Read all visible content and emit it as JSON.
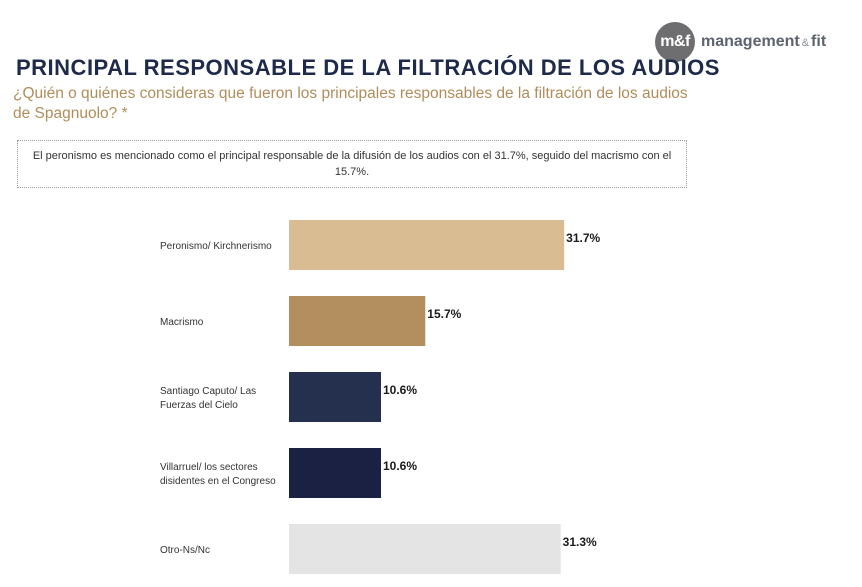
{
  "logo": {
    "badge": "m&f",
    "name": "management",
    "amp": "&",
    "suffix": "fit"
  },
  "title": "PRINCIPAL RESPONSABLE DE LA FILTRACIÓN DE LOS AUDIOS",
  "question": "¿Quién o quiénes consideras que fueron los principales responsables de la filtración de los audios de Spagnuolo? *",
  "summary": "El peronismo es mencionado como el principal responsable de la difusión de los audios con el 31.7%, seguido del macrismo con el 15.7%.",
  "chart_data": {
    "type": "bar",
    "orientation": "horizontal",
    "unit": "%",
    "categories": [
      [
        "Peronismo/ Kirchnerismo"
      ],
      [
        "Macrismo"
      ],
      [
        "Santiago Caputo/ Las",
        "Fuerzas del Cielo"
      ],
      [
        "Villarruel/ los sectores",
        "disidentes en el Congreso"
      ],
      [
        "Otro-Ns/Nc"
      ]
    ],
    "values": [
      31.7,
      15.7,
      10.6,
      10.6,
      31.3
    ],
    "value_labels": [
      "31.7%",
      "15.7%",
      "10.6%",
      "10.6%",
      "31.3%"
    ],
    "colors": [
      "#d9bc92",
      "#b38e5f",
      "#25304f",
      "#1b2142",
      "#e4e4e4"
    ],
    "grid": false,
    "legend": "none"
  }
}
